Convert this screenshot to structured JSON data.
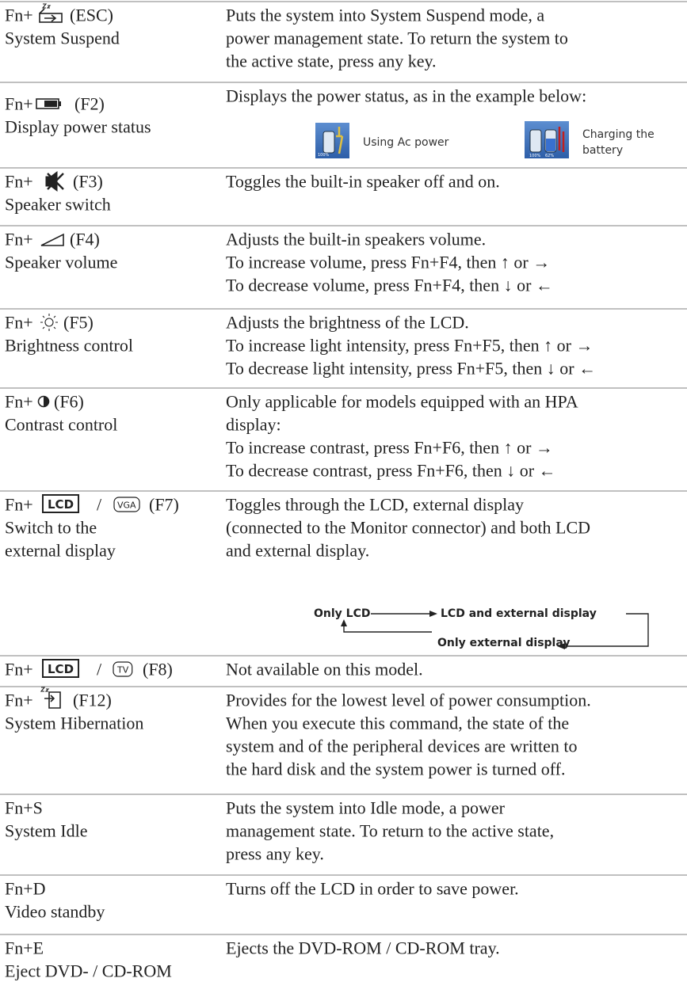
{
  "table": {
    "rows": [
      {
        "key": [
          "Fn+",
          "(ESC)"
        ],
        "name": [
          "System Suspend"
        ],
        "description": [
          "Puts the system into System Suspend mode, a",
          "power management state. To return the system to",
          "the active state, press any key."
        ]
      },
      {
        "key": [
          "Fn+",
          "(F2)"
        ],
        "name": [
          "Display power status"
        ],
        "description": [
          "Displays the power status, as in the example below:"
        ],
        "figure": {
          "ac": {
            "caption": [
              "Using Ac power"
            ],
            "levels": [
              "100%"
            ]
          },
          "charging": {
            "caption": [
              "Charging the",
              "battery"
            ],
            "levels": [
              "100%",
              "62%"
            ]
          }
        }
      },
      {
        "key": [
          "Fn+",
          "(F3)"
        ],
        "name": [
          "Speaker switch"
        ],
        "description": [
          "Toggles the built-in speaker off and on."
        ]
      },
      {
        "key": [
          "Fn+",
          "(F4)"
        ],
        "name": [
          "Speaker volume"
        ],
        "description": [
          "Adjusts the built-in speakers volume.",
          "To increase volume, press Fn+F4, then ↑ or →",
          "To decrease volume, press Fn+F4, then ↓ or ←"
        ]
      },
      {
        "key": [
          "Fn+",
          "(F5)"
        ],
        "name": [
          "Brightness control"
        ],
        "description": [
          "Adjusts the brightness of the LCD.",
          "To increase light intensity, press Fn+F5, then ↑ or →",
          "To decrease light intensity, press Fn+F5, then ↓ or ←"
        ]
      },
      {
        "key": [
          "Fn+",
          "(F6)"
        ],
        "name": [
          "Contrast control"
        ],
        "description": [
          "Only applicable for models equipped with an HPA",
          "display:",
          "To increase contrast, press Fn+F6, then ↑ or →",
          "To decrease contrast, press Fn+F6, then ↓ or ←"
        ]
      },
      {
        "key": [
          "Fn+",
          "LCD",
          "/",
          "VGA",
          "(F7)"
        ],
        "name": [
          "Switch to the",
          "external display"
        ],
        "description": [
          "Toggles through the LCD, external display",
          "(connected to the  Monitor connector) and both LCD",
          "and external display."
        ],
        "diagram": {
          "only_lcd": "Only LCD",
          "both": "LCD and external display",
          "only_external": "Only external display"
        }
      },
      {
        "key": [
          "Fn+",
          "LCD",
          "/",
          "TV",
          "(F8)"
        ],
        "description": [
          "Not available on this model."
        ]
      },
      {
        "key": [
          "Fn+",
          "(F12)"
        ],
        "name": [
          "System Hibernation"
        ],
        "description": [
          "Provides for the lowest level of power consumption.",
          "When you execute this command, the state of the",
          "system and of the peripheral devices are written to",
          "the hard disk and the system power is turned off."
        ]
      },
      {
        "key": [
          "Fn+S"
        ],
        "name": [
          "System Idle"
        ],
        "description": [
          "Puts the system into Idle mode, a power",
          "management state. To return to the active state,",
          "press any key."
        ]
      },
      {
        "key": [
          "Fn+D"
        ],
        "name": [
          "Video standby"
        ],
        "description": [
          "Turns off the LCD in order to save power."
        ]
      },
      {
        "key": [
          "Fn+E"
        ],
        "name": [
          "Eject DVD- / CD-ROM"
        ],
        "description": [
          "Ejects the DVD-ROM / CD-ROM tray."
        ]
      }
    ]
  }
}
